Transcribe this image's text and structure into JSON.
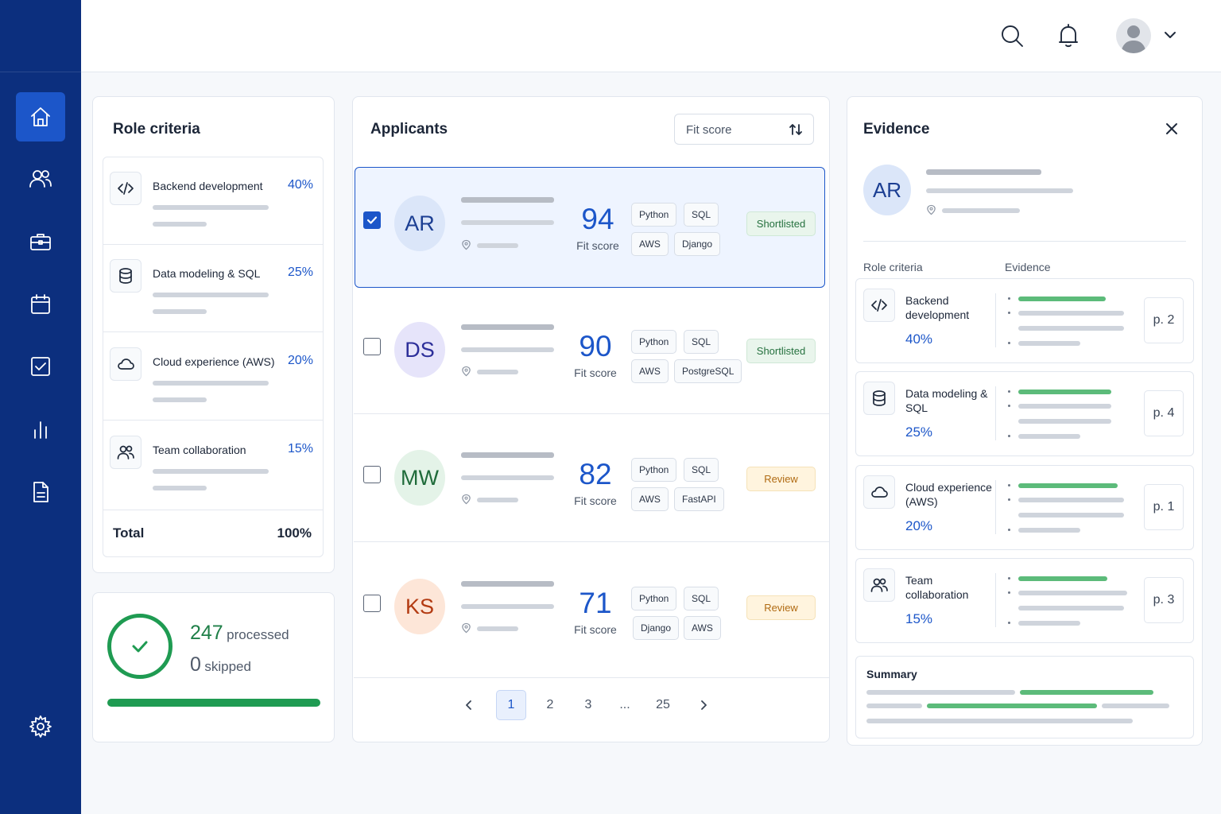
{
  "sidebar": {
    "items": [
      {
        "icon": "home-icon"
      },
      {
        "icon": "users-icon"
      },
      {
        "icon": "briefcase-icon"
      },
      {
        "icon": "calendar-icon"
      },
      {
        "icon": "checkbox-icon"
      },
      {
        "icon": "bar-chart-icon"
      },
      {
        "icon": "document-icon"
      },
      {
        "icon": "gear-icon"
      }
    ],
    "active": "home-icon"
  },
  "topbar": {
    "icons": [
      "search-icon",
      "bell-icon",
      "avatar",
      "chevron-down-icon"
    ]
  },
  "role_criteria": {
    "title": "Role criteria",
    "items": [
      {
        "label": "Backend development",
        "pct": "40%",
        "icon": "code-icon"
      },
      {
        "label": "Data modeling & SQL",
        "pct": "25%",
        "icon": "database-icon"
      },
      {
        "label": "Cloud experience (AWS)",
        "pct": "20%",
        "icon": "cloud-icon"
      },
      {
        "label": "Team collaboration",
        "pct": "15%",
        "icon": "team-icon"
      }
    ],
    "total_label": "Total",
    "total_value": "100%"
  },
  "processing": {
    "processed_count": "247",
    "processed_label": "processed",
    "skipped_count": "0",
    "skipped_label": "skipped",
    "progress": 1.0
  },
  "applicants": {
    "title": "Applicants",
    "sort_label": "Fit score",
    "rows": [
      {
        "initials": "AR",
        "score": "94",
        "score_label": "Fit score",
        "tags": [
          "Python",
          "SQL",
          "AWS",
          "Django"
        ],
        "status": "Shortlisted",
        "checked": true
      },
      {
        "initials": "DS",
        "score": "90",
        "score_label": "Fit score",
        "tags": [
          "Python",
          "SQL",
          "AWS",
          "PostgreSQL"
        ],
        "status": "Shortlisted",
        "checked": false
      },
      {
        "initials": "MW",
        "score": "82",
        "score_label": "Fit score",
        "tags": [
          "Python",
          "SQL",
          "AWS",
          "FastAPI"
        ],
        "status": "Review",
        "checked": false
      },
      {
        "initials": "KS",
        "score": "71",
        "score_label": "Fit score",
        "tags": [
          "Python",
          "SQL",
          "Django",
          "AWS"
        ],
        "status": "Review",
        "checked": false
      }
    ],
    "pagination": {
      "pages": [
        "1",
        "2",
        "3",
        "...",
        "25"
      ],
      "current": "1"
    }
  },
  "evidence": {
    "title": "Evidence",
    "initials": "AR",
    "col_criteria": "Role criteria",
    "col_evidence": "Evidence",
    "cards": [
      {
        "label": "Backend development",
        "pct": "40%",
        "page": "p. 2",
        "icon": "code-icon"
      },
      {
        "label": "Data modeling & SQL",
        "pct": "25%",
        "page": "p. 4",
        "icon": "database-icon"
      },
      {
        "label": "Cloud experience (AWS)",
        "pct": "20%",
        "page": "p. 1",
        "icon": "cloud-icon"
      },
      {
        "label": "Team collaboration",
        "pct": "15%",
        "page": "p. 3",
        "icon": "team-icon"
      }
    ],
    "summary_title": "Summary"
  },
  "colors": {
    "sidebar": "#0c2f7e",
    "accent": "#1c56c9",
    "success": "#1f9b52",
    "review": "#b06a12"
  }
}
